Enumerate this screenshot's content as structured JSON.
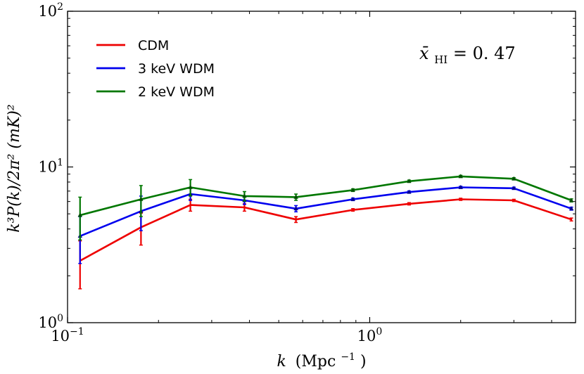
{
  "chart_data": {
    "type": "line",
    "title": "",
    "xlabel": "k (Mpc⁻¹)",
    "xlabel_main": "k",
    "xlabel_unit": "(Mpc",
    "xlabel_sup": "−1",
    "xlabel_close": ")",
    "ylabel": "k³P(k)/2π² (mK)²",
    "xscale": "log",
    "yscale": "log",
    "xlim": [
      0.1,
      4.8
    ],
    "ylim": [
      1,
      100
    ],
    "xticks": [
      {
        "value": 0.1,
        "base": "10",
        "exp": "−1"
      },
      {
        "value": 1,
        "base": "10",
        "exp": "0"
      }
    ],
    "yticks": [
      {
        "value": 1,
        "base": "10",
        "exp": "0"
      },
      {
        "value": 10,
        "base": "10",
        "exp": "1"
      },
      {
        "value": 100,
        "base": "10",
        "exp": "2"
      }
    ],
    "annotation": {
      "symbol": "x̄",
      "sub": "HI",
      "text": " = 0. 47"
    },
    "legend_position": "top-left",
    "series": [
      {
        "name": "CDM",
        "color": "#ee0000",
        "x": [
          0.11,
          0.175,
          0.255,
          0.385,
          0.57,
          0.88,
          1.35,
          2.0,
          3.0,
          4.65
        ],
        "y": [
          2.5,
          4.1,
          5.7,
          5.5,
          4.6,
          5.3,
          5.8,
          6.2,
          6.1,
          4.6
        ],
        "err": [
          0.85,
          0.95,
          0.5,
          0.3,
          0.2,
          0.1,
          0.1,
          0.1,
          0.1,
          0.1
        ]
      },
      {
        "name": "3 keV WDM",
        "color": "#0000ee",
        "x": [
          0.11,
          0.175,
          0.255,
          0.385,
          0.57,
          0.88,
          1.35,
          2.0,
          3.0,
          4.65
        ],
        "y": [
          3.6,
          5.2,
          6.7,
          6.1,
          5.4,
          6.2,
          6.9,
          7.4,
          7.3,
          5.4
        ],
        "err": [
          1.2,
          1.3,
          0.6,
          0.35,
          0.25,
          0.12,
          0.12,
          0.12,
          0.12,
          0.12
        ]
      },
      {
        "name": "2 keV WDM",
        "color": "#007700",
        "x": [
          0.11,
          0.175,
          0.255,
          0.385,
          0.57,
          0.88,
          1.35,
          2.0,
          3.0,
          4.65
        ],
        "y": [
          4.9,
          6.2,
          7.4,
          6.5,
          6.4,
          7.1,
          8.1,
          8.7,
          8.4,
          6.1
        ],
        "err": [
          1.5,
          1.4,
          0.9,
          0.45,
          0.3,
          0.14,
          0.14,
          0.14,
          0.14,
          0.14
        ]
      }
    ]
  }
}
